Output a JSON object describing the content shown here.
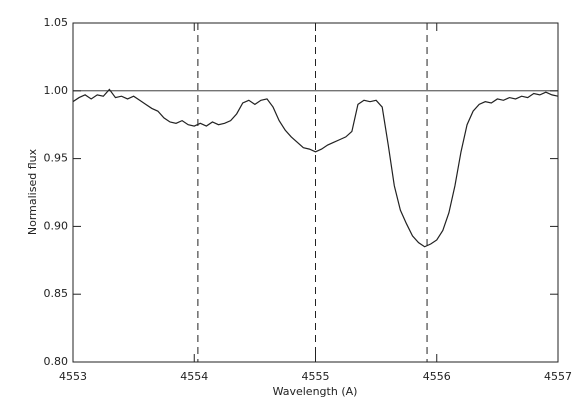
{
  "chart_data": {
    "type": "line",
    "xlabel": "Wavelength (A)",
    "ylabel": "Normalised flux",
    "xlim": [
      4553,
      4557
    ],
    "ylim": [
      0.8,
      1.05
    ],
    "xticks": [
      4553,
      4554,
      4555,
      4556,
      4557
    ],
    "yticks": [
      {
        "value": 0.8,
        "label": "0.80"
      },
      0.85,
      {
        "value": 0.9,
        "label": "0.90"
      },
      0.95,
      {
        "value": 1.0,
        "label": "1.00"
      },
      1.05
    ],
    "hline": 1.0,
    "vlines": [
      4554.03,
      4555.0,
      4555.92
    ],
    "color": "#222222",
    "x": [
      4553.0,
      4553.05,
      4553.1,
      4553.15,
      4553.2,
      4553.25,
      4553.3,
      4553.35,
      4553.4,
      4553.45,
      4553.5,
      4553.55,
      4553.6,
      4553.65,
      4553.7,
      4553.75,
      4553.8,
      4553.85,
      4553.9,
      4553.95,
      4554.0,
      4554.05,
      4554.1,
      4554.15,
      4554.2,
      4554.25,
      4554.3,
      4554.35,
      4554.4,
      4554.45,
      4554.5,
      4554.55,
      4554.6,
      4554.65,
      4554.7,
      4554.75,
      4554.8,
      4554.85,
      4554.9,
      4554.95,
      4555.0,
      4555.05,
      4555.1,
      4555.15,
      4555.2,
      4555.25,
      4555.3,
      4555.35,
      4555.4,
      4555.45,
      4555.5,
      4555.55,
      4555.6,
      4555.65,
      4555.7,
      4555.75,
      4555.8,
      4555.85,
      4555.9,
      4555.95,
      4556.0,
      4556.05,
      4556.1,
      4556.15,
      4556.2,
      4556.25,
      4556.3,
      4556.35,
      4556.4,
      4556.45,
      4556.5,
      4556.55,
      4556.6,
      4556.65,
      4556.7,
      4556.75,
      4556.8,
      4556.85,
      4556.9,
      4556.95,
      4557.0
    ],
    "values": [
      0.992,
      0.995,
      0.997,
      0.994,
      0.997,
      0.996,
      1.001,
      0.995,
      0.996,
      0.994,
      0.996,
      0.993,
      0.99,
      0.987,
      0.985,
      0.98,
      0.977,
      0.976,
      0.978,
      0.975,
      0.974,
      0.976,
      0.974,
      0.977,
      0.975,
      0.976,
      0.978,
      0.983,
      0.991,
      0.993,
      0.99,
      0.993,
      0.994,
      0.988,
      0.978,
      0.971,
      0.966,
      0.962,
      0.958,
      0.957,
      0.955,
      0.957,
      0.96,
      0.962,
      0.964,
      0.966,
      0.97,
      0.99,
      0.993,
      0.992,
      0.993,
      0.988,
      0.96,
      0.93,
      0.912,
      0.902,
      0.893,
      0.888,
      0.885,
      0.887,
      0.89,
      0.897,
      0.91,
      0.93,
      0.955,
      0.975,
      0.985,
      0.99,
      0.992,
      0.991,
      0.994,
      0.993,
      0.995,
      0.994,
      0.996,
      0.995,
      0.998,
      0.997,
      0.999,
      0.997,
      0.996
    ]
  }
}
